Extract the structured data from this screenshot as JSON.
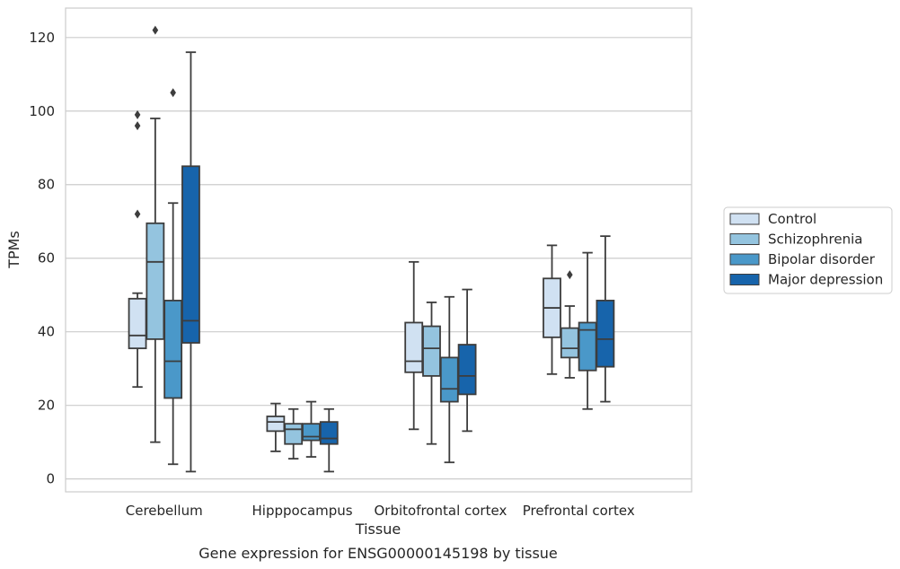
{
  "chart_data": {
    "type": "boxplot",
    "xlabel": "Tissue",
    "ylabel": "TPMs",
    "caption": "Gene expression for ENSG00000145198 by tissue",
    "ylim": [
      -3.5,
      128
    ],
    "yticks": [
      "0",
      "20",
      "40",
      "60",
      "80",
      "100",
      "120"
    ],
    "grid": true,
    "legend_position": "right-center",
    "categories": [
      "Cerebellum",
      "Hipppocampus",
      "Orbitofrontal cortex",
      "Prefrontal cortex"
    ],
    "series": [
      {
        "name": "Control",
        "color": "#d0e1f2",
        "boxes": [
          {
            "whislo": 25,
            "q1": 35.5,
            "med": 39,
            "q3": 49,
            "whishi": 50.5,
            "fliers": [
              72,
              96,
              99
            ]
          },
          {
            "whislo": 7.5,
            "q1": 13,
            "med": 15.5,
            "q3": 17,
            "whishi": 20.5,
            "fliers": []
          },
          {
            "whislo": 13.5,
            "q1": 29,
            "med": 32,
            "q3": 42.5,
            "whishi": 59,
            "fliers": []
          },
          {
            "whislo": 28.5,
            "q1": 38.5,
            "med": 46.5,
            "q3": 54.5,
            "whishi": 63.5,
            "fliers": []
          }
        ]
      },
      {
        "name": "Schizophrenia",
        "color": "#94c4df",
        "boxes": [
          {
            "whislo": 10,
            "q1": 38,
            "med": 59,
            "q3": 69.5,
            "whishi": 98,
            "fliers": [
              122
            ]
          },
          {
            "whislo": 5.5,
            "q1": 9.5,
            "med": 13.5,
            "q3": 15,
            "whishi": 19,
            "fliers": []
          },
          {
            "whislo": 9.5,
            "q1": 28,
            "med": 35.5,
            "q3": 41.5,
            "whishi": 48,
            "fliers": []
          },
          {
            "whislo": 27.5,
            "q1": 33,
            "med": 35.5,
            "q3": 41,
            "whishi": 47,
            "fliers": [
              55.5
            ]
          }
        ]
      },
      {
        "name": "Bipolar disorder",
        "color": "#4a98c9",
        "boxes": [
          {
            "whislo": 4,
            "q1": 22,
            "med": 32,
            "q3": 48.5,
            "whishi": 75,
            "fliers": [
              105
            ]
          },
          {
            "whislo": 6,
            "q1": 10.5,
            "med": 11.5,
            "q3": 15,
            "whishi": 21,
            "fliers": []
          },
          {
            "whislo": 4.5,
            "q1": 21,
            "med": 24.5,
            "q3": 33,
            "whishi": 49.5,
            "fliers": []
          },
          {
            "whislo": 19,
            "q1": 29.5,
            "med": 40.5,
            "q3": 42.5,
            "whishi": 61.5,
            "fliers": []
          }
        ]
      },
      {
        "name": "Major depression",
        "color": "#1764ab",
        "boxes": [
          {
            "whislo": 2,
            "q1": 37,
            "med": 43,
            "q3": 85,
            "whishi": 116,
            "fliers": []
          },
          {
            "whislo": 2,
            "q1": 9.5,
            "med": 11,
            "q3": 15.5,
            "whishi": 19,
            "fliers": []
          },
          {
            "whislo": 13,
            "q1": 23,
            "med": 28,
            "q3": 36.5,
            "whishi": 51.5,
            "fliers": []
          },
          {
            "whislo": 21,
            "q1": 30.5,
            "med": 38,
            "q3": 48.5,
            "whishi": 66,
            "fliers": []
          }
        ]
      }
    ]
  }
}
